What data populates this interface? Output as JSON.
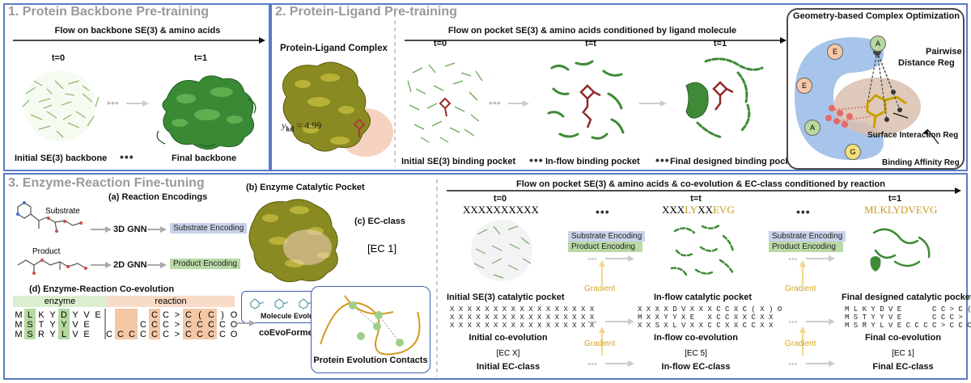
{
  "panel1": {
    "title": "1. Protein Backbone Pre-training",
    "flow": "Flow on backbone SE(3) & amino acids",
    "t0": "t=0",
    "t1": "t=1",
    "initial": "Initial SE(3) backbone",
    "final": "Final backbone",
    "ellipsis": "•••"
  },
  "panel2": {
    "title": "2. Protein-Ligand Pre-training",
    "flow": "Flow on pocket SE(3) & amino acids conditioned by ligand molecule",
    "complex": "Protein-Ligand Complex",
    "ykd_sym": "y",
    "ykd_sub": "kd",
    "ykd_val": " = 4.99",
    "t0": "t=0",
    "tt": "t=t",
    "t1": "t=1",
    "initial": "Initial SE(3) binding pocket",
    "inflow": "In-flow binding pocket",
    "final": "Final designed binding pocket",
    "ellipsis": "•••"
  },
  "geo": {
    "title": "Geometry-based Complex Optimization",
    "pairwise": "Pairwise",
    "distance": "Distance Reg",
    "surface": "Surface Interaction Reg",
    "affinity": "Binding Affinity Reg",
    "residues": [
      "A",
      "E",
      "E",
      "A",
      "G"
    ]
  },
  "panel3": {
    "title": "3. Enzyme-Reaction Fine-tuning",
    "a_title": "(a) Reaction Encodings",
    "substrate": "Substrate",
    "product": "Product",
    "gnn3d": "3D GNN",
    "gnn2d": "2D GNN",
    "sub_enc": "Substrate Encoding",
    "prod_enc": "Product Encoding",
    "b_title": "(b) Enzyme Catalytic Pocket",
    "c_title": "(c) EC-class",
    "ec1": "[EC 1]",
    "d_title": "(d) Enzyme-Reaction Co-evolution",
    "enzyme": "enzyme",
    "reaction": "reaction",
    "enzyme_rows": [
      [
        "M",
        "L",
        "K",
        "Y",
        "D",
        "Y",
        "V",
        "E"
      ],
      [
        "M",
        "S",
        "T",
        "Y",
        "Y",
        "V",
        "E",
        ""
      ],
      [
        "M",
        "S",
        "R",
        "Y",
        "L",
        "V",
        "E",
        ""
      ]
    ],
    "reaction_rows": [
      [
        "",
        "",
        "",
        "",
        "C",
        "C",
        ">",
        "C",
        "(",
        "C",
        ")",
        "O"
      ],
      [
        "",
        "",
        "",
        "C",
        "C",
        "C",
        ">",
        "C",
        "C",
        "C",
        "C",
        "O"
      ],
      [
        "C",
        "C",
        "C",
        "C",
        "C",
        "C",
        ">",
        "C",
        "C",
        "C",
        "C",
        "O"
      ]
    ],
    "molecule_evo": "Molecule Evolution",
    "coevo": "coEvoFormer",
    "contacts": "Protein Evolution Contacts",
    "flow": "Flow on pocket SE(3) & amino acids & co-evolution & EC-class conditioned by reaction",
    "t0": "t=0",
    "tt": "t=t",
    "t1": "t=1",
    "seq0": "XXXXXXXXXX",
    "seqt_a": "XXX",
    "seqt_b": "LY",
    "seqt_c": "XX",
    "seqt_d": "EVG",
    "seq1": "MLKLYDVEVG",
    "sub_enc2": "Substrate Encoding",
    "prod_enc2": "Product Encoding",
    "gradient": "Gradient",
    "initial_pocket": "Initial SE(3) catalytic pocket",
    "inflow_pocket": "In-flow catalytic pocket",
    "final_pocket": "Final designed catalytic pocket",
    "init_coevo_rows": [
      "X X X X X X X X X X X X X X X X X",
      "X X X X X X X X X X X X X X X X X",
      "X X X X X X X X X X X X X X X X X"
    ],
    "inflow_coevo_rows": [
      "X X X X D V X X X C C X C ( X ) O",
      "M X X Y Y X E   X C C X X C X X",
      "X X S X L V X X C C X X C C X X"
    ],
    "final_coevo_rows": [
      "M L K Y D V E       C C > C ( C ) O",
      "M S T Y Y V E       C C C >   C C C O",
      "M S R Y L V E C C C C > C C C C O"
    ],
    "init_coevo": "Initial co-evolution",
    "inflow_coevo": "In-flow co-evolution",
    "final_coevo": "Final co-evolution",
    "ecx": "[EC X]",
    "ec5": "[EC 5]",
    "ec1b": "[EC 1]",
    "init_ec": "Initial EC-class",
    "inflow_ec": "In-flow EC-class",
    "final_ec": "Final EC-class",
    "ellipsis": "•••"
  }
}
